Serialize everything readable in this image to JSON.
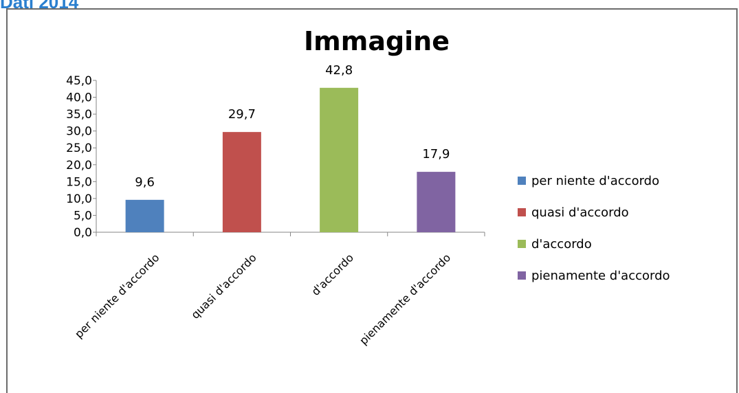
{
  "header": {
    "title": "Dati 2014"
  },
  "chart_data": {
    "type": "bar",
    "title": "Immagine",
    "categories": [
      "per niente d'accordo",
      "quasi d'accordo",
      "d'accordo",
      "pienamente d'accordo"
    ],
    "values": [
      9.6,
      29.7,
      42.8,
      17.9
    ],
    "value_labels": [
      "9,6",
      "29,7",
      "42,8",
      "17,9"
    ],
    "colors": [
      "#4f81bd",
      "#c0504d",
      "#9bbb59",
      "#8064a2"
    ],
    "ylim": [
      0,
      45
    ],
    "y_ticks": [
      "0,0",
      "5,0",
      "10,0",
      "15,0",
      "20,0",
      "25,0",
      "30,0",
      "35,0",
      "40,0",
      "45,0"
    ],
    "xlabel": "",
    "ylabel": "",
    "grid": false,
    "legend": {
      "position": "right",
      "entries": [
        "per niente d'accordo",
        "quasi d'accordo",
        "d'accordo",
        "pienamente d'accordo"
      ]
    }
  }
}
